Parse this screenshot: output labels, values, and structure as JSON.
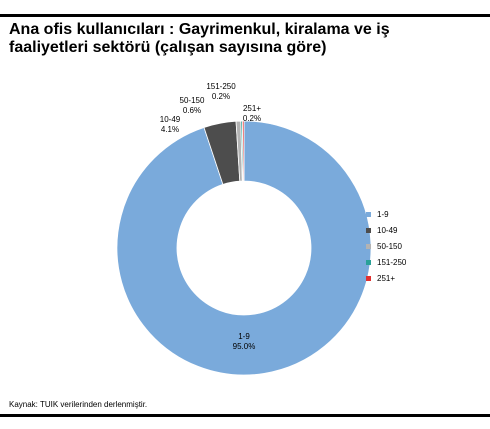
{
  "title": {
    "line1": "Ana ofis kullanıcıları : Gayrimenkul, kiralama ve iş",
    "line2": "faaliyetleri sektörü (çalışan sayısına göre)"
  },
  "source": "Kaynak: TUIK verilerinden derlenmiştir.",
  "chart_data": {
    "type": "pie",
    "donut": true,
    "title": "Ana ofis kullanıcıları : Gayrimenkul, kiralama ve iş faaliyetleri sektörü (çalışan sayısına göre)",
    "categories": [
      "1-9",
      "10-49",
      "50-150",
      "151-250",
      "251+"
    ],
    "values": [
      95.0,
      4.1,
      0.6,
      0.2,
      0.2
    ],
    "value_labels": [
      "95.0%",
      "4.1%",
      "0.6%",
      "0.2%",
      "0.2%"
    ],
    "colors": [
      "#7aaadb",
      "#4d4d4d",
      "#b3b3b3",
      "#2aa198",
      "#e03030"
    ],
    "legend": {
      "placement": "right",
      "entries": [
        "1-9",
        "10-49",
        "50-150",
        "151-250",
        "251+"
      ]
    }
  }
}
